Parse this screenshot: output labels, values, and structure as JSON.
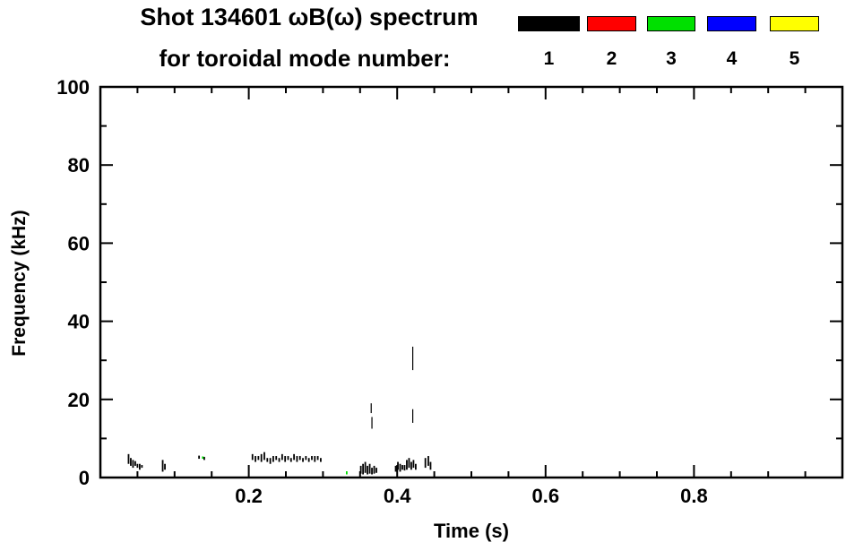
{
  "chart_data": {
    "type": "scatter",
    "title": "Shot 134601 ωB(ω) spectrum",
    "subtitle": "for toroidal mode number:",
    "xlabel": "Time (s)",
    "ylabel": "Frequency (kHz)",
    "xlim": [
      0.0,
      1.0
    ],
    "ylim": [
      0,
      100
    ],
    "grid": false,
    "xticks": {
      "major": [
        0.2,
        0.4,
        0.6,
        0.8
      ],
      "labels": [
        "0.2",
        "0.4",
        "0.6",
        "0.8"
      ],
      "minor_step": 0.05
    },
    "yticks": {
      "major": [
        0,
        20,
        40,
        60,
        80,
        100
      ],
      "labels": [
        "0",
        "20",
        "40",
        "60",
        "80",
        "100"
      ],
      "minor_step": 10
    },
    "legend": {
      "position": "top-right",
      "entries": [
        {
          "mode": "1",
          "color": "#000000"
        },
        {
          "mode": "2",
          "color": "#ff0000"
        },
        {
          "mode": "3",
          "color": "#00e000"
        },
        {
          "mode": "4",
          "color": "#0000ff"
        },
        {
          "mode": "5",
          "color": "#ffff00"
        }
      ]
    },
    "series": [
      {
        "name": "mode 1",
        "color": "#000000",
        "segments": [
          [
            0.038,
            3.5,
            6.0
          ],
          [
            0.041,
            3.0,
            5.0
          ],
          [
            0.044,
            2.5,
            4.5
          ],
          [
            0.047,
            3.0,
            4.2
          ],
          [
            0.05,
            2.5,
            3.5
          ],
          [
            0.053,
            2.0,
            3.5
          ],
          [
            0.056,
            2.5,
            3.2
          ],
          [
            0.084,
            1.5,
            4.5
          ],
          [
            0.087,
            2.0,
            3.5
          ],
          [
            0.133,
            4.8,
            5.6
          ],
          [
            0.14,
            4.5,
            5.3
          ],
          [
            0.205,
            4.5,
            6.0
          ],
          [
            0.209,
            4.0,
            5.5
          ],
          [
            0.213,
            4.5,
            5.5
          ],
          [
            0.217,
            4.0,
            6.0
          ],
          [
            0.221,
            4.5,
            6.5
          ],
          [
            0.225,
            4.0,
            5.0
          ],
          [
            0.229,
            3.5,
            5.0
          ],
          [
            0.233,
            4.0,
            5.5
          ],
          [
            0.237,
            4.5,
            5.5
          ],
          [
            0.241,
            4.0,
            5.0
          ],
          [
            0.245,
            4.5,
            6.0
          ],
          [
            0.249,
            4.0,
            5.5
          ],
          [
            0.253,
            4.5,
            5.5
          ],
          [
            0.257,
            4.0,
            5.0
          ],
          [
            0.261,
            4.5,
            6.0
          ],
          [
            0.265,
            4.0,
            5.5
          ],
          [
            0.269,
            4.5,
            5.5
          ],
          [
            0.273,
            4.0,
            5.0
          ],
          [
            0.277,
            4.5,
            5.5
          ],
          [
            0.281,
            4.0,
            5.0
          ],
          [
            0.285,
            4.5,
            5.5
          ],
          [
            0.289,
            4.0,
            5.5
          ],
          [
            0.293,
            4.5,
            5.5
          ],
          [
            0.297,
            4.0,
            5.0
          ],
          [
            0.351,
            1.0,
            3.0
          ],
          [
            0.354,
            0.8,
            3.5
          ],
          [
            0.357,
            1.2,
            4.0
          ],
          [
            0.36,
            0.8,
            3.0
          ],
          [
            0.363,
            1.0,
            3.5
          ],
          [
            0.366,
            0.8,
            2.5
          ],
          [
            0.369,
            1.0,
            3.0
          ],
          [
            0.372,
            1.2,
            2.5
          ],
          [
            0.365,
            16.5,
            19.0,
            1.2
          ],
          [
            0.366,
            12.5,
            15.5,
            1.2
          ],
          [
            0.398,
            1.5,
            3.0
          ],
          [
            0.401,
            2.0,
            4.0
          ],
          [
            0.404,
            1.5,
            3.5
          ],
          [
            0.407,
            2.0,
            3.2
          ],
          [
            0.41,
            1.8,
            3.2
          ],
          [
            0.413,
            2.0,
            4.5
          ],
          [
            0.416,
            2.5,
            5.0
          ],
          [
            0.419,
            2.0,
            4.0
          ],
          [
            0.422,
            2.5,
            4.5
          ],
          [
            0.425,
            2.0,
            3.5
          ],
          [
            0.421,
            27.5,
            33.5,
            1.2
          ],
          [
            0.421,
            14.0,
            17.5,
            1.2
          ],
          [
            0.438,
            2.5,
            5.0
          ],
          [
            0.442,
            3.0,
            5.5
          ],
          [
            0.445,
            2.0,
            4.0
          ]
        ]
      },
      {
        "name": "mode 2",
        "color": "#ff0000",
        "segments": []
      },
      {
        "name": "mode 3",
        "color": "#00e000",
        "segments": [
          [
            0.138,
            4.8,
            5.4
          ],
          [
            0.332,
            0.8,
            1.6
          ]
        ]
      },
      {
        "name": "mode 4",
        "color": "#0000ff",
        "segments": []
      },
      {
        "name": "mode 5",
        "color": "#ffff00",
        "segments": []
      }
    ]
  }
}
